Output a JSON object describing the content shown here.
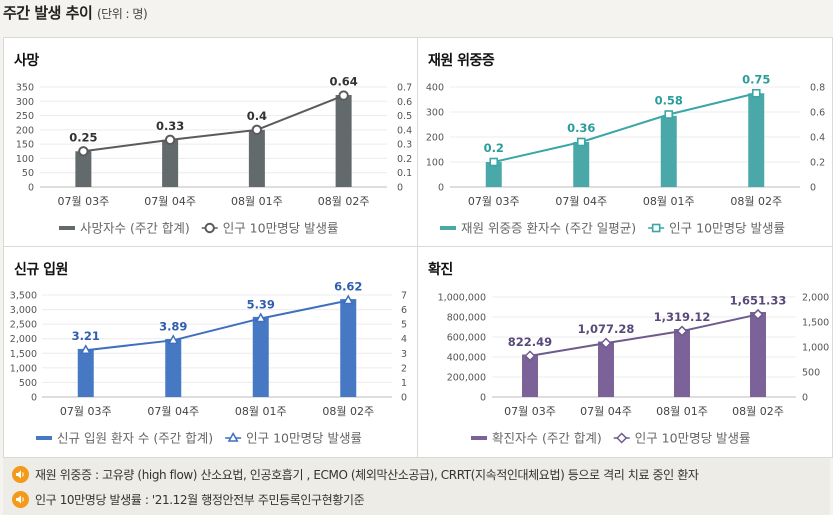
{
  "page": {
    "title": "주간 발생 추이",
    "unit": "(단위 : 명)"
  },
  "panels": [
    {
      "title": "사망"
    },
    {
      "title": "재원 위중증"
    },
    {
      "title": "신규 입원"
    },
    {
      "title": "확진"
    }
  ],
  "notes": [
    {
      "icon": "speaker-icon",
      "text": "재원 위중증 : 고유량 (high flow) 산소요법, 인공호흡기 , ECMO (체외막산소공급), CRRT(지속적인대체요법) 등으로 격리 치료 중인 환자"
    },
    {
      "icon": "speaker-icon",
      "text": "인구 10만명당 발생률 : '21.12월 행정안전부 주민등록인구현황기준"
    }
  ],
  "chart_data": [
    {
      "type": "bar",
      "title": "사망",
      "categories": [
        "07월 03주",
        "07월 04주",
        "08월 01주",
        "08월 02주"
      ],
      "series": [
        {
          "name": "사망자수 (주간 합계)",
          "type": "bar",
          "axis": "left",
          "values": [
            125,
            165,
            200,
            322
          ]
        },
        {
          "name": "인구 10만명당 발생률",
          "type": "line",
          "axis": "right",
          "values": [
            0.25,
            0.33,
            0.4,
            0.64
          ],
          "labels": [
            "0.25",
            "0.33",
            "0.4",
            "0.64"
          ]
        }
      ],
      "y_left": {
        "min": 0,
        "max": 350,
        "ticks": [
          "0",
          "50",
          "100",
          "150",
          "200",
          "250",
          "300",
          "350"
        ]
      },
      "y_right": {
        "min": 0,
        "max": 0.7,
        "ticks": [
          "0",
          "0.1",
          "0.2",
          "0.3",
          "0.4",
          "0.5",
          "0.6",
          "0.7"
        ]
      },
      "colors": {
        "bar": "#636a6b",
        "line": "#5b5b5b",
        "label": "#333333"
      },
      "marker": "circle"
    },
    {
      "type": "bar",
      "title": "재원 위중증",
      "categories": [
        "07월 03주",
        "07월 04주",
        "08월 01주",
        "08월 02주"
      ],
      "series": [
        {
          "name": "재원 위중증 환자수 (주간 일평균)",
          "type": "bar",
          "axis": "left",
          "values": [
            100,
            180,
            285,
            375
          ]
        },
        {
          "name": "인구 10만명당 발생률",
          "type": "line",
          "axis": "right",
          "values": [
            0.2,
            0.36,
            0.58,
            0.75
          ],
          "labels": [
            "0.2",
            "0.36",
            "0.58",
            "0.75"
          ]
        }
      ],
      "y_left": {
        "min": 0,
        "max": 400,
        "ticks": [
          "0",
          "100",
          "200",
          "300",
          "400"
        ]
      },
      "y_right": {
        "min": 0,
        "max": 0.8,
        "ticks": [
          "0",
          "0.2",
          "0.4",
          "0.6",
          "0.8"
        ]
      },
      "colors": {
        "bar": "#4aa9a8",
        "line": "#3aa6a5",
        "label": "#2a9d9b"
      },
      "marker": "square"
    },
    {
      "type": "bar",
      "title": "신규 입원",
      "categories": [
        "07월 03주",
        "07월 04주",
        "08월 01주",
        "08월 02주"
      ],
      "series": [
        {
          "name": "신규 입원 환자 수 (주간 합계)",
          "type": "bar",
          "axis": "left",
          "values": [
            1650,
            1990,
            2750,
            3360
          ]
        },
        {
          "name": "인구 10만명당 발생률",
          "type": "line",
          "axis": "right",
          "values": [
            3.21,
            3.89,
            5.39,
            6.62
          ],
          "labels": [
            "3.21",
            "3.89",
            "5.39",
            "6.62"
          ]
        }
      ],
      "y_left": {
        "min": 0,
        "max": 3500,
        "ticks": [
          "0",
          "500",
          "1,000",
          "1,500",
          "2,000",
          "2,500",
          "3,000",
          "3,500"
        ]
      },
      "y_right": {
        "min": 0,
        "max": 7,
        "ticks": [
          "0",
          "1",
          "2",
          "3",
          "4",
          "5",
          "6",
          "7"
        ]
      },
      "colors": {
        "bar": "#4778c4",
        "line": "#3f6fbf",
        "label": "#2f5fae"
      },
      "marker": "triangle"
    },
    {
      "type": "bar",
      "title": "확진",
      "categories": [
        "07월 03주",
        "07월 04주",
        "08월 01주",
        "08월 02주"
      ],
      "series": [
        {
          "name": "확진자수 (주간 합계)",
          "type": "bar",
          "axis": "left",
          "values": [
            425000,
            555000,
            680000,
            850000
          ]
        },
        {
          "name": "인구 10만명당 발생률",
          "type": "line",
          "axis": "right",
          "values": [
            822.49,
            1077.28,
            1319.12,
            1651.33
          ],
          "labels": [
            "822.49",
            "1,077.28",
            "1,319.12",
            "1,651.33"
          ]
        }
      ],
      "y_left": {
        "min": 0,
        "max": 1000000,
        "ticks": [
          "0",
          "200,000",
          "400,000",
          "600,000",
          "800,000",
          "1,000,000"
        ]
      },
      "y_right": {
        "min": 0,
        "max": 2000,
        "ticks": [
          "0",
          "500",
          "1,000",
          "1,500",
          "2,000"
        ]
      },
      "colors": {
        "bar": "#7b6399",
        "line": "#6e5a8c",
        "label": "#5a4a7a"
      },
      "marker": "diamond"
    }
  ]
}
